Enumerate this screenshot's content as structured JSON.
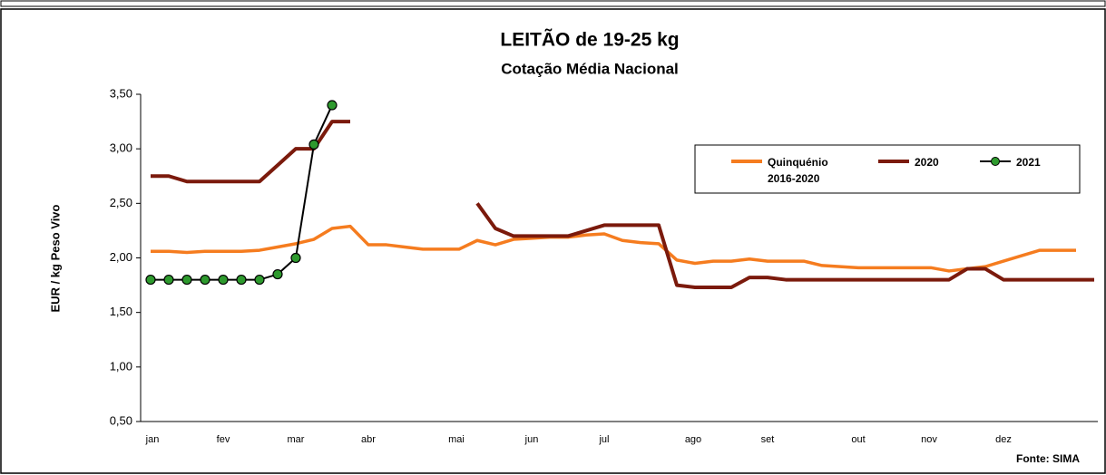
{
  "chart_data": {
    "type": "line",
    "title": "LEITÃO de 19-25 kg",
    "subtitle": "Cotação Média Nacional",
    "y_label": "EUR / kg Peso Vivo",
    "source": "Fonte: SIMA",
    "x": [
      1,
      2,
      3,
      4,
      5,
      6,
      7,
      8,
      9,
      10,
      11,
      12,
      13,
      14,
      15,
      16,
      17,
      18,
      19,
      20,
      21,
      22,
      23,
      24,
      25,
      26,
      27,
      28,
      29,
      30,
      31,
      32,
      33,
      34,
      35,
      36,
      37,
      38,
      39,
      40,
      41,
      42,
      43,
      44,
      45,
      46,
      47,
      48,
      49,
      50,
      51,
      52,
      53
    ],
    "xlim": [
      0.45,
      53.2
    ],
    "xticks": [
      {
        "value": 1.1,
        "label": "jan"
      },
      {
        "value": 5,
        "label": "fev"
      },
      {
        "value": 9,
        "label": "mar"
      },
      {
        "value": 13,
        "label": "abr"
      },
      {
        "value": 17.85,
        "label": "mai"
      },
      {
        "value": 22,
        "label": "jun"
      },
      {
        "value": 26,
        "label": "jul"
      },
      {
        "value": 30.9,
        "label": "ago"
      },
      {
        "value": 35,
        "label": "set"
      },
      {
        "value": 40,
        "label": "out"
      },
      {
        "value": 43.9,
        "label": "nov"
      },
      {
        "value": 48,
        "label": "dez"
      }
    ],
    "ylim": [
      0.5,
      3.5
    ],
    "yticks": [
      {
        "value": 0.5,
        "label": "0,50"
      },
      {
        "value": 1,
        "label": "1,00"
      },
      {
        "value": 1.5,
        "label": "1,50"
      },
      {
        "value": 2,
        "label": "2,00"
      },
      {
        "value": 2.5,
        "label": "2,50"
      },
      {
        "value": 3,
        "label": "3,00"
      },
      {
        "value": 3.5,
        "label": "3,50"
      }
    ],
    "legend": "upper right",
    "series": [
      {
        "name": "Quinquénio 2016-2020",
        "color": "#f57c1f",
        "marker": false,
        "values": [
          2.06,
          2.06,
          2.05,
          2.06,
          2.06,
          2.06,
          2.07,
          2.1,
          2.13,
          2.17,
          2.27,
          2.29,
          2.12,
          2.12,
          2.1,
          2.08,
          2.08,
          2.08,
          2.16,
          2.12,
          2.17,
          2.18,
          2.19,
          2.19,
          2.21,
          2.22,
          2.16,
          2.14,
          2.13,
          1.98,
          1.95,
          1.97,
          1.97,
          1.99,
          1.97,
          1.97,
          1.97,
          1.93,
          1.92,
          1.91,
          1.91,
          1.91,
          1.91,
          1.91,
          1.88,
          1.9,
          1.92,
          1.97,
          2.02,
          2.07,
          2.07,
          2.07,
          null
        ]
      },
      {
        "name": "2020",
        "color": "#7b1a0c",
        "marker": false,
        "values": [
          2.75,
          2.75,
          2.7,
          2.7,
          2.7,
          2.7,
          2.7,
          2.85,
          3.0,
          3.0,
          3.25,
          3.25,
          null,
          null,
          null,
          null,
          null,
          null,
          2.5,
          2.27,
          2.2,
          2.2,
          2.2,
          2.2,
          2.25,
          2.3,
          2.3,
          2.3,
          2.3,
          1.75,
          1.73,
          1.73,
          1.73,
          1.82,
          1.82,
          1.8,
          1.8,
          1.8,
          1.8,
          1.8,
          1.8,
          1.8,
          1.8,
          1.8,
          1.8,
          1.9,
          1.9,
          1.8,
          1.8,
          1.8,
          1.8,
          1.8,
          1.8
        ]
      },
      {
        "name": "2021",
        "color": "#000000",
        "marker": true,
        "marker_color": "#2e9a2e",
        "values": [
          1.8,
          1.8,
          1.8,
          1.8,
          1.8,
          1.8,
          1.8,
          1.85,
          2.0,
          3.04,
          3.4,
          null,
          null,
          null,
          null,
          null,
          null,
          null,
          null,
          null,
          null,
          null,
          null,
          null,
          null,
          null,
          null,
          null,
          null,
          null,
          null,
          null,
          null,
          null,
          null,
          null,
          null,
          null,
          null,
          null,
          null,
          null,
          null,
          null,
          null,
          null,
          null,
          null,
          null,
          null,
          null,
          null,
          null
        ]
      }
    ]
  }
}
